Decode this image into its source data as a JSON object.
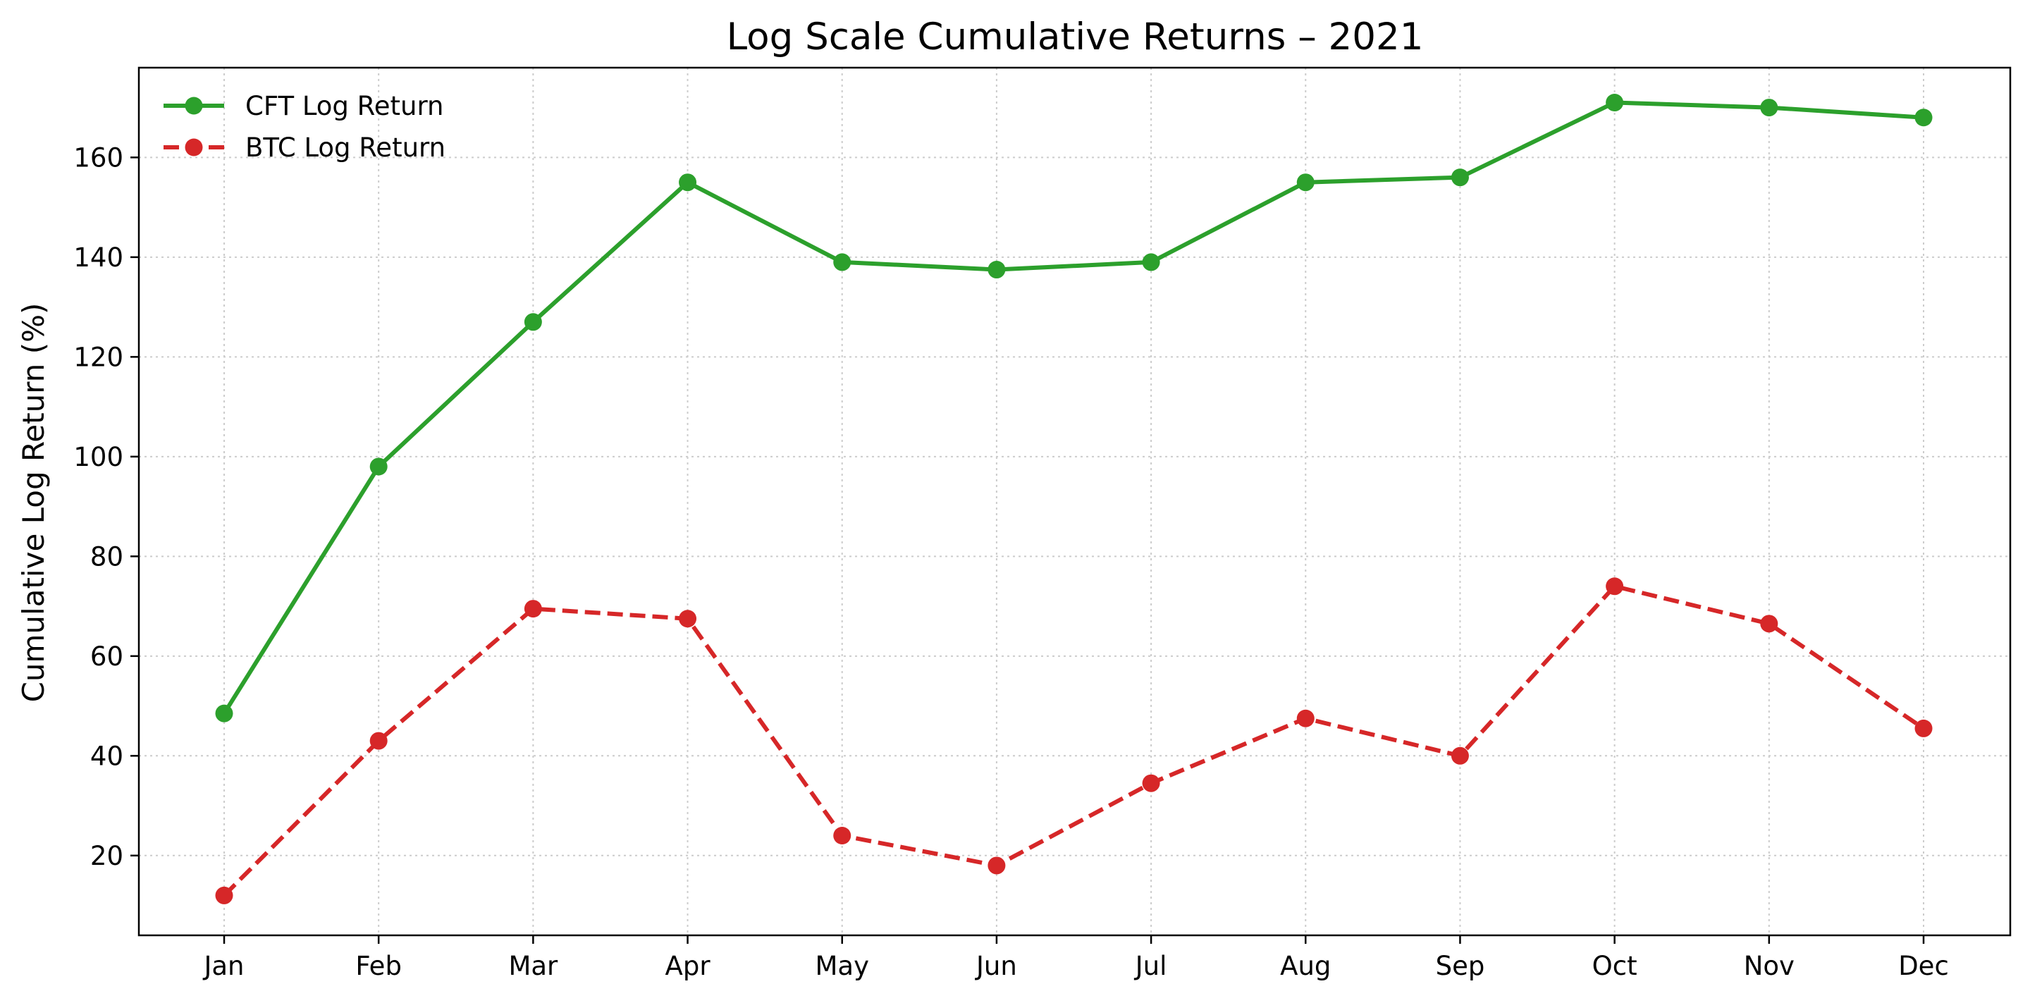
{
  "chart_data": {
    "type": "line",
    "title": "Log Scale Cumulative Returns – 2021",
    "xlabel": "",
    "ylabel": "Cumulative Log Return (%)",
    "categories": [
      "Jan",
      "Feb",
      "Mar",
      "Apr",
      "May",
      "Jun",
      "Jul",
      "Aug",
      "Sep",
      "Oct",
      "Nov",
      "Dec"
    ],
    "ylim": [
      4,
      178
    ],
    "yticks": [
      20,
      40,
      60,
      80,
      100,
      120,
      140,
      160
    ],
    "grid": true,
    "legend_position": "top-left",
    "series": [
      {
        "name": "CFT Log Return",
        "color": "#2ca02c",
        "line_style": "solid",
        "marker": "circle",
        "values": [
          48.5,
          98,
          127,
          155,
          139,
          137.5,
          139,
          155,
          156,
          171,
          170,
          168
        ]
      },
      {
        "name": "BTC Log Return",
        "color": "#d62728",
        "line_style": "dashed",
        "marker": "circle",
        "values": [
          12,
          43,
          69.5,
          67.5,
          24,
          18,
          34.5,
          47.5,
          40,
          74,
          66.5,
          45.5
        ]
      }
    ]
  }
}
